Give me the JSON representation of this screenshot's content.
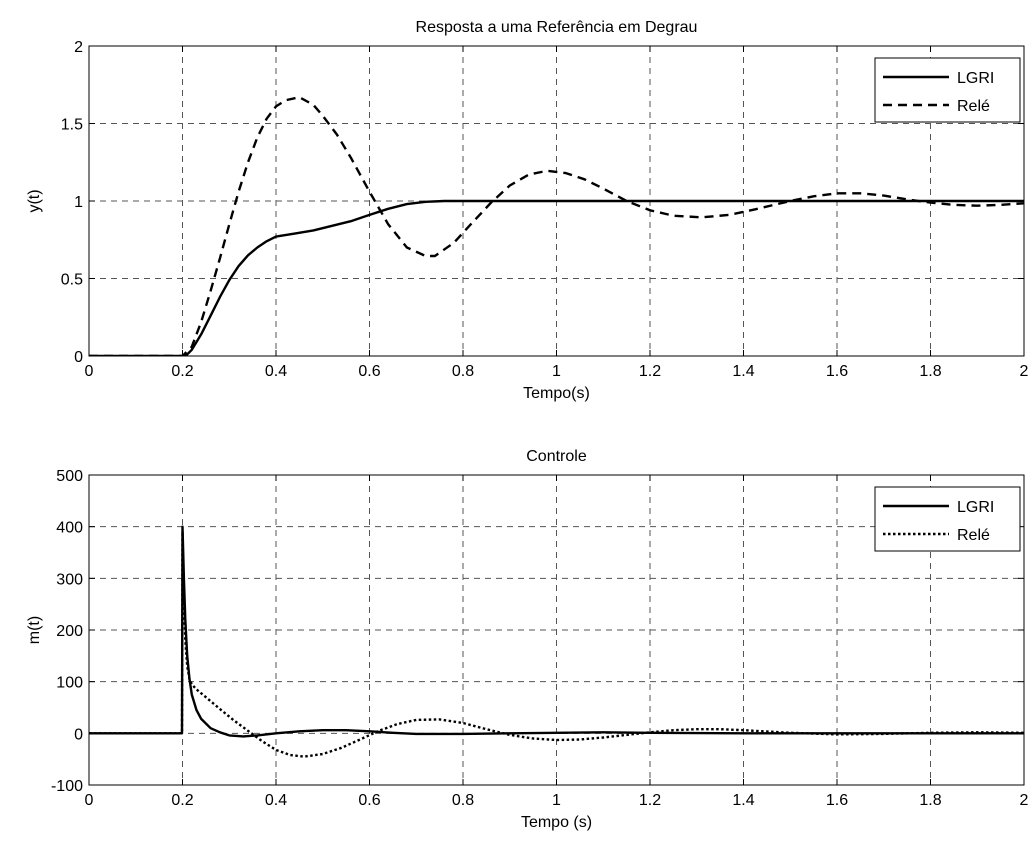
{
  "chart_data": [
    {
      "type": "line",
      "title": "Resposta a uma Referência em Degrau",
      "xlabel": "Tempo(s)",
      "ylabel": "y(t)",
      "xlim": [
        0,
        2
      ],
      "ylim": [
        0,
        2
      ],
      "xticks": [
        "0",
        "0.2",
        "0.4",
        "0.6",
        "0.8",
        "1",
        "1.2",
        "1.4",
        "1.6",
        "1.8",
        "2"
      ],
      "yticks": [
        "0",
        "0.5",
        "1",
        "1.5",
        "2"
      ],
      "grid": true,
      "legend_position": "top-right",
      "series": [
        {
          "name": "LGRI",
          "style": "solid",
          "color": "#000000",
          "x": [
            0,
            0.2,
            0.21,
            0.22,
            0.24,
            0.26,
            0.28,
            0.3,
            0.32,
            0.34,
            0.36,
            0.38,
            0.4,
            0.44,
            0.48,
            0.52,
            0.56,
            0.6,
            0.64,
            0.68,
            0.72,
            0.76,
            0.8,
            0.9,
            1.0,
            1.2,
            1.4,
            1.6,
            1.8,
            2.0
          ],
          "y": [
            0,
            0,
            0.01,
            0.04,
            0.14,
            0.26,
            0.38,
            0.49,
            0.58,
            0.65,
            0.7,
            0.74,
            0.77,
            0.79,
            0.81,
            0.84,
            0.87,
            0.91,
            0.95,
            0.98,
            0.995,
            1.0,
            1.0,
            1.0,
            1.0,
            1.0,
            1.0,
            1.0,
            1.0,
            1.0
          ]
        },
        {
          "name": "Relé",
          "style": "dashed",
          "color": "#000000",
          "x": [
            0,
            0.2,
            0.22,
            0.24,
            0.26,
            0.28,
            0.3,
            0.32,
            0.34,
            0.36,
            0.38,
            0.4,
            0.42,
            0.45,
            0.48,
            0.5,
            0.53,
            0.56,
            0.6,
            0.64,
            0.68,
            0.72,
            0.74,
            0.78,
            0.82,
            0.86,
            0.9,
            0.94,
            0.98,
            1.02,
            1.06,
            1.1,
            1.15,
            1.2,
            1.25,
            1.31,
            1.37,
            1.43,
            1.5,
            1.55,
            1.6,
            1.65,
            1.7,
            1.75,
            1.8,
            1.85,
            1.9,
            1.95,
            2.0
          ],
          "y": [
            0,
            0,
            0.06,
            0.22,
            0.42,
            0.63,
            0.85,
            1.06,
            1.25,
            1.41,
            1.53,
            1.61,
            1.65,
            1.67,
            1.62,
            1.55,
            1.43,
            1.28,
            1.06,
            0.85,
            0.7,
            0.645,
            0.645,
            0.73,
            0.86,
            0.99,
            1.1,
            1.17,
            1.195,
            1.18,
            1.14,
            1.08,
            1.0,
            0.94,
            0.905,
            0.895,
            0.91,
            0.95,
            1.0,
            1.03,
            1.05,
            1.05,
            1.035,
            1.01,
            0.99,
            0.975,
            0.97,
            0.975,
            0.985
          ]
        }
      ]
    },
    {
      "type": "line",
      "title": "Controle",
      "xlabel": "Tempo (s)",
      "ylabel": "m(t)",
      "xlim": [
        0,
        2
      ],
      "ylim": [
        -100,
        500
      ],
      "xticks": [
        "0",
        "0.2",
        "0.4",
        "0.6",
        "0.8",
        "1",
        "1.2",
        "1.4",
        "1.6",
        "1.8",
        "2"
      ],
      "yticks": [
        "-100",
        "0",
        "100",
        "200",
        "300",
        "400",
        "500"
      ],
      "grid": true,
      "legend_position": "top-right",
      "series": [
        {
          "name": "LGRI",
          "style": "solid",
          "color": "#000000",
          "x": [
            0,
            0.199,
            0.2,
            0.203,
            0.206,
            0.21,
            0.215,
            0.22,
            0.23,
            0.24,
            0.26,
            0.28,
            0.3,
            0.33,
            0.36,
            0.4,
            0.45,
            0.5,
            0.55,
            0.6,
            0.65,
            0.7,
            0.8,
            0.9,
            1.0,
            1.1,
            1.2,
            1.4,
            1.6,
            1.8,
            2.0
          ],
          "y": [
            0,
            0,
            400,
            300,
            220,
            150,
            105,
            75,
            45,
            28,
            10,
            2,
            -4,
            -6,
            -4,
            0,
            4,
            6,
            6,
            4,
            1,
            -1,
            -1,
            0,
            1,
            2,
            1,
            0,
            0,
            0,
            0
          ],
          "linewidth": 2.4
        },
        {
          "name": "Relé",
          "style": "dotted",
          "color": "#000000",
          "x": [
            0,
            0.199,
            0.2,
            0.203,
            0.206,
            0.21,
            0.215,
            0.22,
            0.23,
            0.25,
            0.28,
            0.31,
            0.34,
            0.37,
            0.4,
            0.43,
            0.46,
            0.5,
            0.54,
            0.58,
            0.62,
            0.66,
            0.7,
            0.75,
            0.8,
            0.85,
            0.9,
            0.95,
            1.0,
            1.05,
            1.1,
            1.15,
            1.2,
            1.25,
            1.3,
            1.35,
            1.4,
            1.5,
            1.6,
            1.7,
            1.8,
            1.9,
            2.0
          ],
          "y": [
            0,
            0,
            390,
            260,
            180,
            130,
            105,
            95,
            85,
            70,
            47,
            25,
            5,
            -15,
            -32,
            -42,
            -45,
            -40,
            -28,
            -12,
            5,
            18,
            26,
            27,
            20,
            8,
            -3,
            -10,
            -13,
            -12,
            -8,
            -3,
            2,
            6,
            8,
            8,
            6,
            1,
            -2,
            -1,
            1,
            2,
            1
          ],
          "linewidth": 2.4
        }
      ]
    }
  ]
}
